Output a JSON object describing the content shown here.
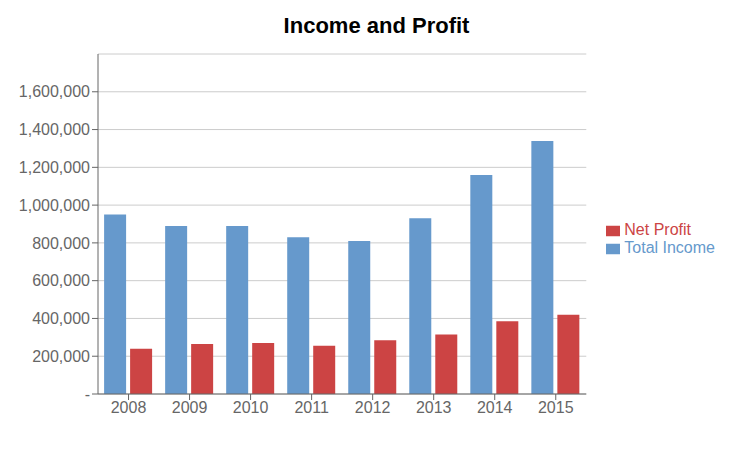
{
  "chart_data": {
    "type": "bar",
    "title": "Income and Profit",
    "categories": [
      "2008",
      "2009",
      "2010",
      "2011",
      "2012",
      "2013",
      "2014",
      "2015"
    ],
    "series": [
      {
        "name": "Total Income",
        "color": "#6699CC",
        "values": [
          950000,
          890000,
          890000,
          830000,
          810000,
          930000,
          1160000,
          1340000
        ]
      },
      {
        "name": "Net Profit",
        "color": "#CC4444",
        "values": [
          240000,
          265000,
          270000,
          255000,
          285000,
          315000,
          385000,
          420000
        ]
      }
    ],
    "ylim": [
      0,
      1800000
    ],
    "yticks": [
      {
        "value": 0,
        "label": "-"
      },
      {
        "value": 200000,
        "label": "200,000"
      },
      {
        "value": 400000,
        "label": "400,000"
      },
      {
        "value": 600000,
        "label": "600,000"
      },
      {
        "value": 800000,
        "label": "800,000"
      },
      {
        "value": 1000000,
        "label": "1,000,000"
      },
      {
        "value": 1200000,
        "label": "1,200,000"
      },
      {
        "value": 1400000,
        "label": "1,400,000"
      },
      {
        "value": 1600000,
        "label": "1,600,000"
      }
    ],
    "grid": true,
    "legend": "right"
  }
}
